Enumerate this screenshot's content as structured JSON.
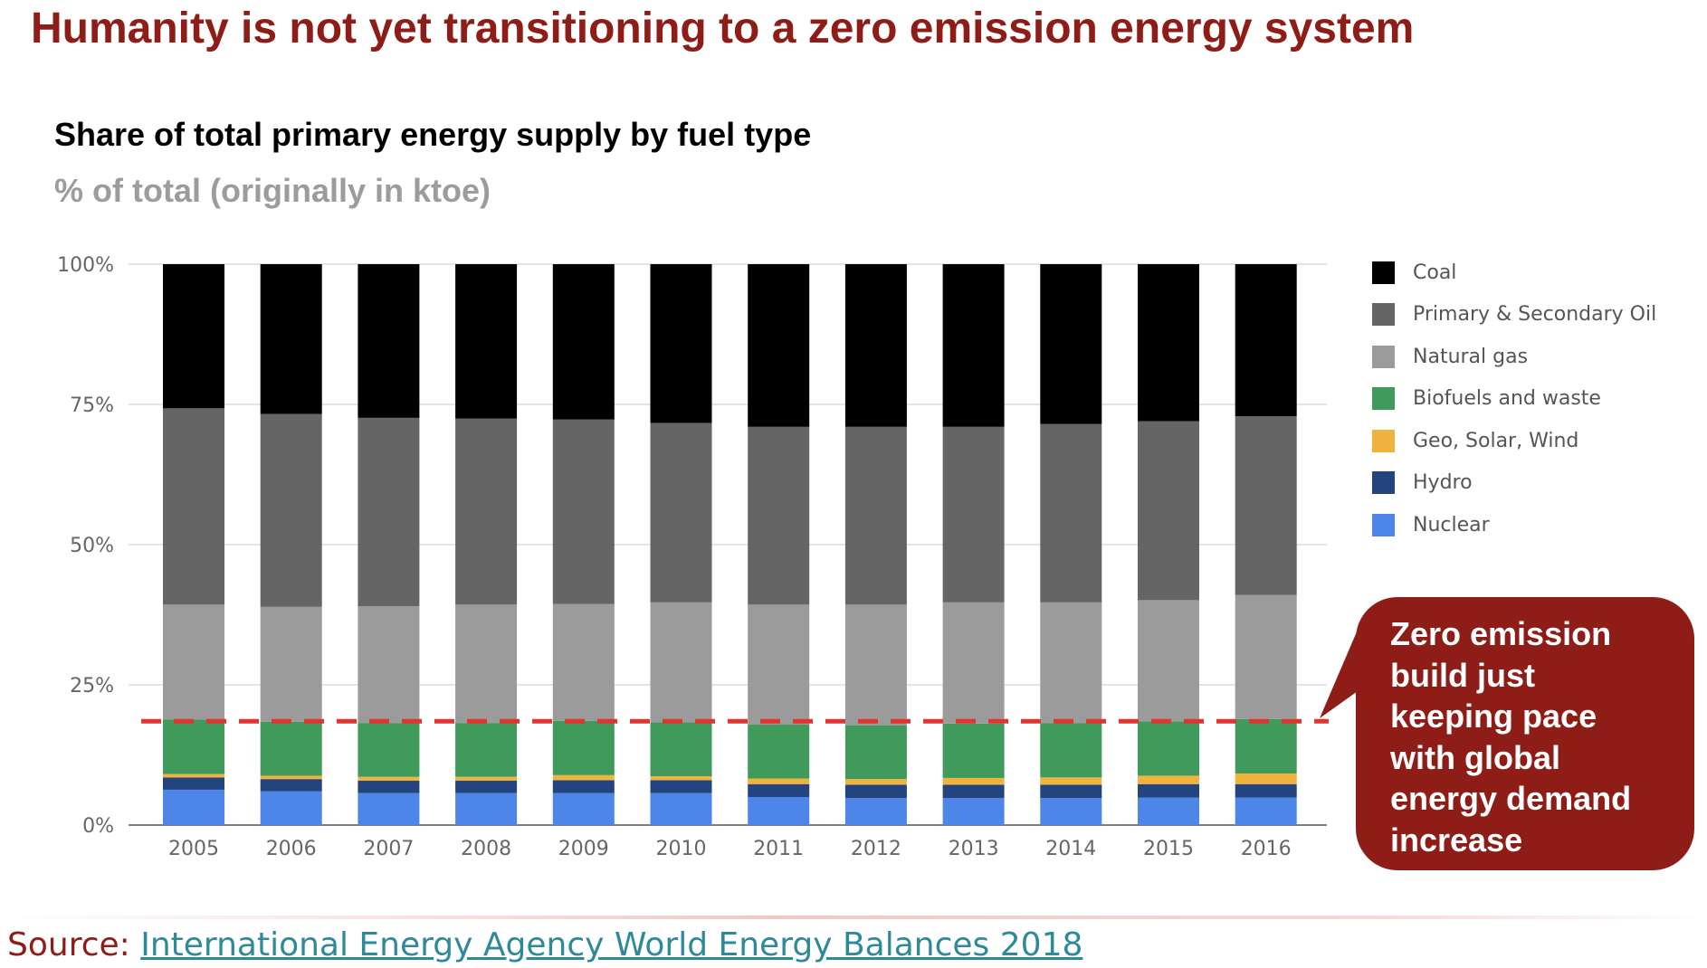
{
  "header": {
    "title": "Humanity is not yet transitioning to a zero emission energy system"
  },
  "callout": {
    "lines": [
      "Zero emission",
      "build just",
      "keeping pace",
      "with global",
      "energy demand",
      "increase"
    ]
  },
  "source": {
    "label": "Source: ",
    "link_text": "International Energy Agency World Energy Balances 2018"
  },
  "colors": {
    "headline": "#8f1d17",
    "callout_bg": "#8f1d17",
    "link": "#2e8a99",
    "reference_line": "#e0342c"
  },
  "chart_data": {
    "type": "bar",
    "stacked": true,
    "title": "Share of total primary energy supply by fuel type",
    "subtitle": "% of total (originally in ktoe)",
    "xlabel": "",
    "ylabel": "",
    "ylim": [
      0,
      100
    ],
    "yticks": [
      "0%",
      "25%",
      "50%",
      "75%",
      "100%"
    ],
    "grid": true,
    "legend_position": "right",
    "categories": [
      "2005",
      "2006",
      "2007",
      "2008",
      "2009",
      "2010",
      "2011",
      "2012",
      "2013",
      "2014",
      "2015",
      "2016"
    ],
    "series": [
      {
        "name": "Nuclear",
        "color": "#4d86e8",
        "values": [
          6.3,
          6.0,
          5.7,
          5.7,
          5.7,
          5.7,
          5.0,
          4.8,
          4.8,
          4.8,
          4.9,
          4.9
        ]
      },
      {
        "name": "Hydro",
        "color": "#24447f",
        "values": [
          2.2,
          2.2,
          2.2,
          2.2,
          2.3,
          2.3,
          2.3,
          2.4,
          2.4,
          2.4,
          2.4,
          2.4
        ]
      },
      {
        "name": "Geo, Solar, Wind",
        "color": "#f0b43e",
        "values": [
          0.6,
          0.6,
          0.7,
          0.7,
          0.9,
          0.7,
          1.0,
          1.0,
          1.2,
          1.3,
          1.5,
          1.9
        ]
      },
      {
        "name": "Biofuels and waste",
        "color": "#3f9a5b",
        "values": [
          9.7,
          9.6,
          9.6,
          9.6,
          9.7,
          9.6,
          9.6,
          9.6,
          9.7,
          9.7,
          9.7,
          9.7
        ]
      },
      {
        "name": "Natural gas",
        "color": "#9b9b9b",
        "values": [
          20.5,
          20.5,
          20.8,
          21.1,
          20.8,
          21.4,
          21.4,
          21.5,
          21.6,
          21.5,
          21.6,
          22.1
        ]
      },
      {
        "name": "Primary & Secondary Oil",
        "color": "#656565",
        "values": [
          35.0,
          34.4,
          33.6,
          33.2,
          32.9,
          32.0,
          31.7,
          31.7,
          31.3,
          31.8,
          31.9,
          31.9
        ]
      },
      {
        "name": "Coal",
        "color": "#000000",
        "values": [
          25.7,
          26.7,
          27.4,
          27.5,
          27.7,
          28.3,
          29.0,
          29.0,
          29.0,
          28.5,
          28.0,
          27.1
        ]
      }
    ],
    "legend_order": [
      "Coal",
      "Primary & Secondary Oil",
      "Natural gas",
      "Biofuels and waste",
      "Geo, Solar, Wind",
      "Hydro",
      "Nuclear"
    ],
    "reference_line": {
      "value": 18.5,
      "style": "dashed"
    }
  }
}
